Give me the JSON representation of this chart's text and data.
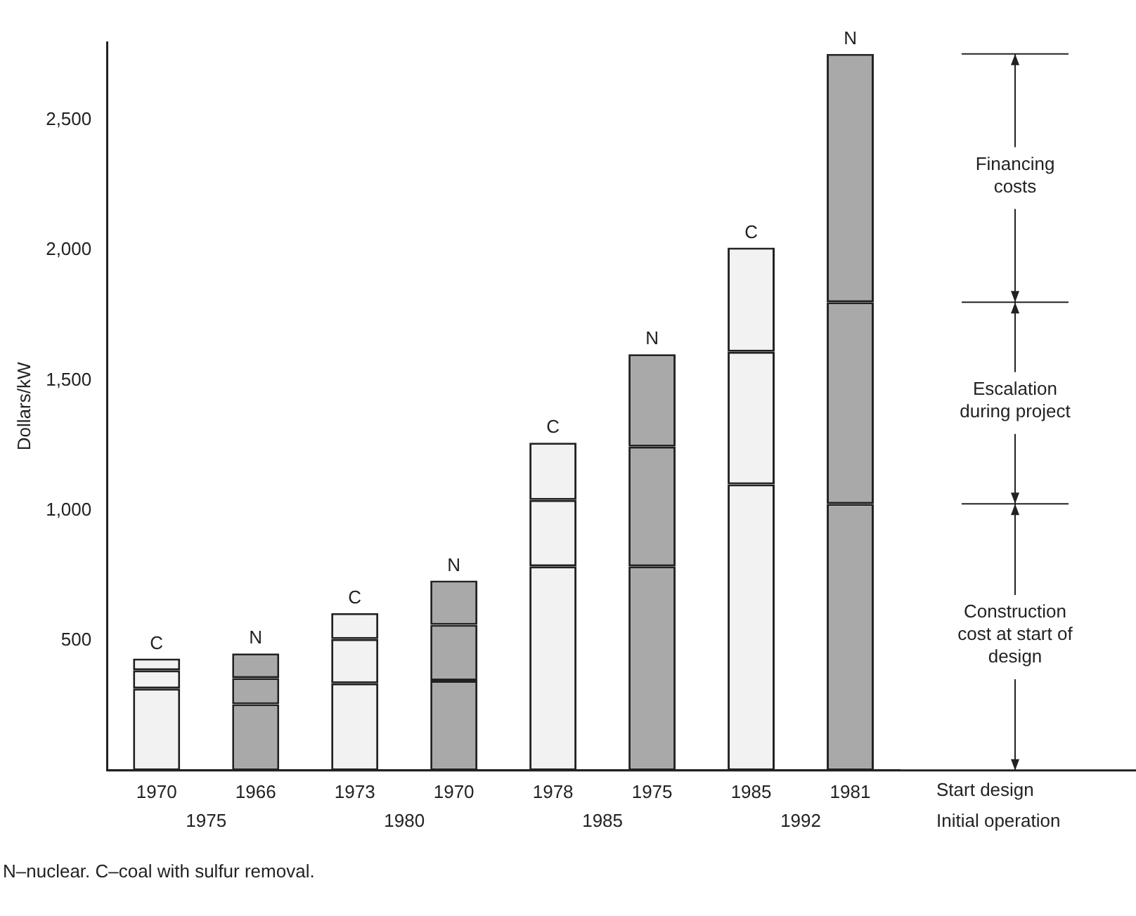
{
  "chart_data": {
    "type": "bar",
    "stacked": true,
    "ylabel": "Dollars/kW",
    "xlabel": "Start design",
    "categories": [
      "1970",
      "1966",
      "1973",
      "1970",
      "1978",
      "1975",
      "1985",
      "1981"
    ],
    "series": [
      {
        "name": "Construction cost at start of design",
        "colors": [
          "#f2f2f2",
          "#a9a9a9",
          "#f2f2f2",
          "#a9a9a9",
          "#f2f2f2",
          "#a9a9a9",
          "#f2f2f2",
          "#a9a9a9"
        ],
        "values": [
          315,
          255,
          335,
          345,
          785,
          785,
          1100,
          1025
        ]
      },
      {
        "name": "Escalation during project",
        "colors": [
          "#f2f2f2",
          "#a9a9a9",
          "#f2f2f2",
          "#a9a9a9",
          "#f2f2f2",
          "#a9a9a9",
          "#f2f2f2",
          "#a9a9a9"
        ],
        "values": [
          70,
          100,
          170,
          215,
          255,
          460,
          510,
          775
        ]
      },
      {
        "name": "Financing costs",
        "colors": [
          "#f2f2f2",
          "#a9a9a9",
          "#f2f2f2",
          "#a9a9a9",
          "#f2f2f2",
          "#a9a9a9",
          "#f2f2f2",
          "#a9a9a9"
        ],
        "values": [
          45,
          95,
          100,
          170,
          220,
          355,
          400,
          955
        ]
      }
    ],
    "ylim": [
      0,
      2800
    ],
    "yticks": [
      500,
      {
        "value": 1000,
        "label": "1,000"
      },
      {
        "value": 1500,
        "label": "1,500"
      },
      {
        "value": 2000,
        "label": "2,000"
      },
      {
        "value": 2500,
        "label": "2,500"
      }
    ],
    "grid": false,
    "legend": false,
    "annotations": [
      "C",
      "N",
      "C",
      "N",
      "C",
      "N",
      "C",
      "N",
      "1975",
      "1980",
      "1985",
      "1992",
      "Initial operation",
      "N–nuclear. C–coal with sulfur removal."
    ]
  }
}
